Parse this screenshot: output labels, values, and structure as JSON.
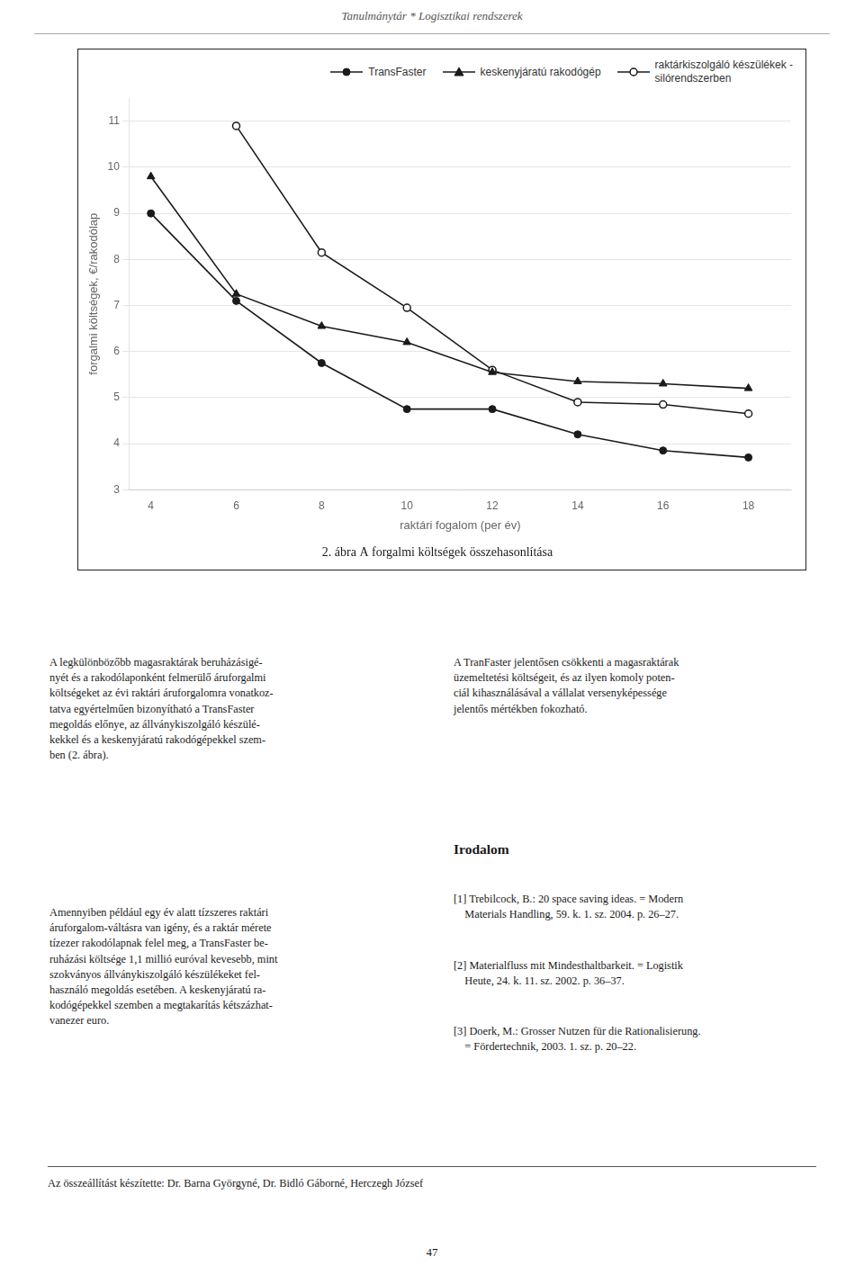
{
  "header": "Tanulmánytár * Logisztikai rendszerek",
  "chart_data": {
    "type": "line",
    "title": "2. ábra A forgalmi költségek összehasonlítása",
    "xlabel": "raktári fogalom (per év)",
    "ylabel": "forgalmi költségek, €/rakodólap",
    "x": [
      4,
      6,
      8,
      10,
      12,
      14,
      16,
      18
    ],
    "series": [
      {
        "name": "TransFaster",
        "color": "#1a1a1a",
        "marker": "circle",
        "values": [
          9.0,
          7.1,
          5.75,
          4.75,
          4.75,
          4.2,
          3.85,
          3.7
        ]
      },
      {
        "name": "keskenyjáratú rakodógép",
        "color": "#1a1a1a",
        "marker": "triangle",
        "values": [
          9.8,
          7.25,
          6.55,
          6.2,
          5.55,
          5.35,
          5.3,
          5.2
        ]
      },
      {
        "name": "raktárkiszolgáló készülékek -\nsilórendszerben",
        "color": "#1a1a1a",
        "marker": "open_circle",
        "values": [
          null,
          10.9,
          8.15,
          6.95,
          5.6,
          4.9,
          4.85,
          4.65
        ]
      }
    ],
    "xlim": [
      3.5,
      19
    ],
    "ylim": [
      3,
      11.5
    ],
    "xticks": [
      4,
      6,
      8,
      10,
      12,
      14,
      16,
      18
    ],
    "yticks": [
      3,
      4,
      5,
      6,
      7,
      8,
      9,
      10,
      11
    ],
    "grid": "y",
    "legend": "upper right"
  },
  "body": [
    "A legkülönbözőbb magasraktárak beruházásigé-\nnyét és a rakodólaponként felmerülő áruforgalmi\nköltségeket az évi raktári áruforgalomra vonatkoz-\ntatva egyértelműen bizonyítható a TransFaster\nmegoldás előnye, az állványkiszolgáló készülé-\nkekkel és a keskenyjáratú rakodógépekkel szem-\nben (2. ábra).",
    "A TranFaster jelentősen csökkenti a magasraktárak\nüzemeltetési költségeit, és az ilyen komoly poten-\nciál kihasználásával a vállalat versenyképessége\njelentős mértékben fokozható.",
    "Amennyiben például egy év alatt tízszeres raktári\náruforgalom-váltásra van igény, és a raktár mérete\ntízezer rakodólapnak felel meg, a TransFaster be-\nruházási költsége 1,1 millió euróval kevesebb, mint\nszokványos állványkiszolgáló készülékeket fel-\nhasználó megoldás esetében. A keskenyjáratú ra-\nkodógépekkel szemben a megtakarítás kétszázhat-\nvanezer euro."
  ],
  "section_title": "Irodalom",
  "references": [
    "[1] Trebilcock, B.: 20 space saving ideas. = Modern\n    Materials Handling, 59. k. 1. sz. 2004. p. 26–27.",
    "[2] Materialfluss mit Mindesthaltbarkeit. = Logistik\n    Heute, 24. k. 11. sz. 2002. p. 36–37.",
    "[3] Doerk, M.: Grosser Nutzen für die Rationalisierung.\n    = Fördertechnik, 2003. 1. sz. p. 20–22."
  ],
  "footer": "Az összeállítást készítette: Dr. Barna Györgyné, Dr. Bidló Gáborné, Herczegh József",
  "page_number": "47"
}
